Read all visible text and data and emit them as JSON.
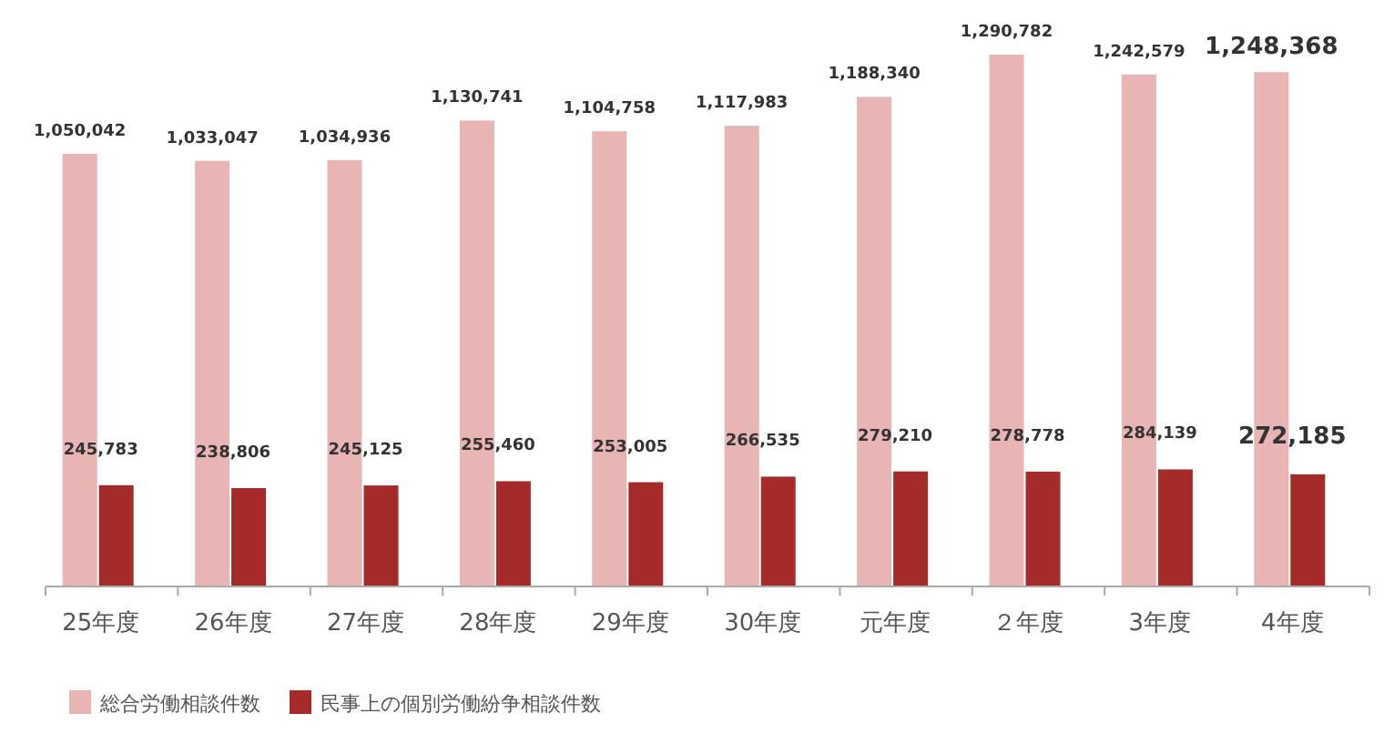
{
  "chart_data": {
    "type": "bar",
    "categories": [
      "25年度",
      "26年度",
      "27年度",
      "28年度",
      "29年度",
      "30年度",
      "元年度",
      "２年度",
      "3年度",
      "4年度"
    ],
    "series": [
      {
        "name": "総合労働相談件数",
        "color": "#e8b4b4",
        "values": [
          1050042,
          1033047,
          1034936,
          1130741,
          1104758,
          1117983,
          1188340,
          1290782,
          1242579,
          1248368
        ],
        "value_labels": [
          "1,050,042",
          "1,033,047",
          "1,034,936",
          "1,130,741",
          "1,104,758",
          "1,117,983",
          "1,188,340",
          "1,290,782",
          "1,242,579",
          "1,248,368"
        ]
      },
      {
        "name": "民事上の個別労働紛争相談件数",
        "color": "#a52a2a",
        "values": [
          245783,
          238806,
          245125,
          255460,
          253005,
          266535,
          279210,
          278778,
          284139,
          272185
        ],
        "value_labels": [
          "245,783",
          "238,806",
          "245,125",
          "255,460",
          "253,005",
          "266,535",
          "279,210",
          "278,778",
          "284,139",
          "272,185"
        ]
      }
    ],
    "legend": "bottom left"
  }
}
